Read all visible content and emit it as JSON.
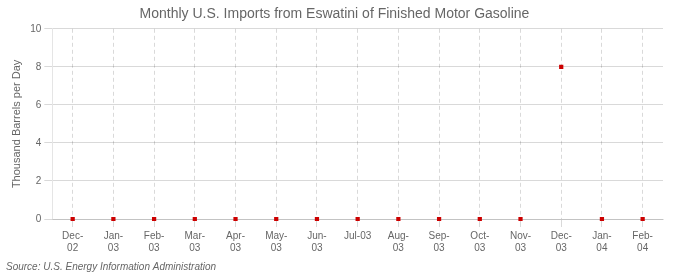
{
  "chart_data": {
    "type": "line",
    "title": "Monthly U.S. Imports from Eswatini of Finished Motor Gasoline",
    "ylabel": "Thousand Barrels per Day",
    "source": "Source: U.S. Energy Information Administration",
    "categories": [
      "Dec-\n02",
      "Jan-\n03",
      "Feb-\n03",
      "Mar-\n03",
      "Apr-\n03",
      "May-\n03",
      "Jun-\n03",
      "Jul-03",
      "Aug-\n03",
      "Sep-\n03",
      "Oct-\n03",
      "Nov-\n03",
      "Dec-\n03",
      "Jan-\n04",
      "Feb-\n04"
    ],
    "values": [
      0,
      0,
      0,
      0,
      0,
      0,
      0,
      0,
      0,
      0,
      0,
      0,
      8,
      0,
      0
    ],
    "color": "#cc0000",
    "marker": "square",
    "line_style": "none",
    "ylim": [
      0,
      10
    ],
    "yticks": [
      0,
      2,
      4,
      6,
      8,
      10
    ],
    "grid": true
  }
}
